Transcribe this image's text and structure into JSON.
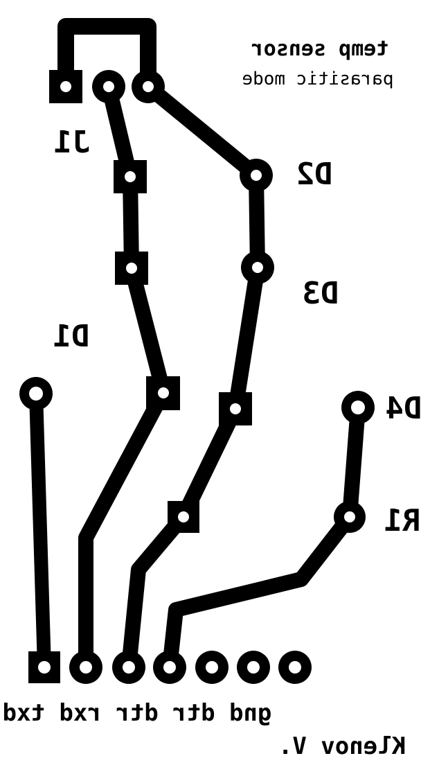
{
  "title": {
    "line1": "temp sensor",
    "line2": "parasitic mode"
  },
  "designators": {
    "j1": "J1",
    "d1": "D1",
    "d2": "D2",
    "d3": "D3",
    "d4": "D4",
    "r1": "R1"
  },
  "header_pins": "gnd dtr dtr rxd txd",
  "author": "Klenov V.",
  "colors": {
    "copper": "#000000",
    "background": "#ffffff",
    "drill": "#ffffff"
  }
}
